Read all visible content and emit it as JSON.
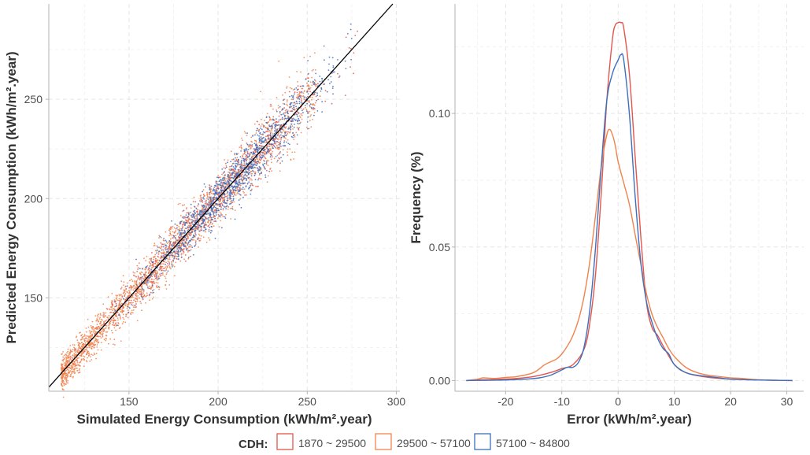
{
  "colors": {
    "group1": "#e2564c",
    "group2": "#f0834d",
    "group3": "#3d6fbd",
    "identity_line": "#000000"
  },
  "legend": {
    "title": "CDH:",
    "items": [
      {
        "label": "1870 ~ 29500",
        "color_key": "group1"
      },
      {
        "label": "29500 ~ 57100",
        "color_key": "group2"
      },
      {
        "label": "57100 ~ 84800",
        "color_key": "group3"
      }
    ]
  },
  "chart_data": [
    {
      "type": "scatter",
      "xlabel": "Simulated Energy Consumption (kWh/m².year)",
      "ylabel": "Predicted Energy Consumption (kWh/m².year)",
      "xlim": [
        105,
        302
      ],
      "ylim": [
        103,
        298
      ],
      "x_ticks": [
        150,
        200,
        250,
        300
      ],
      "y_ticks": [
        150,
        200,
        250
      ],
      "reference_line": "y = x",
      "grid": true,
      "series": [
        {
          "name": "1870 ~ 29500",
          "color_key": "group1",
          "x_range": [
            110,
            280
          ],
          "count": 900
        },
        {
          "name": "29500 ~ 57100",
          "color_key": "group2",
          "x_range": [
            112,
            255
          ],
          "count": 2200
        },
        {
          "name": "57100 ~ 84800",
          "color_key": "group3",
          "x_range": [
            140,
            275
          ],
          "count": 1300
        }
      ]
    },
    {
      "type": "line",
      "xlabel": "Error (kWh/m².year)",
      "ylabel": "Frequency (%)",
      "xlim": [
        -29,
        33
      ],
      "ylim": [
        -0.004,
        0.141
      ],
      "x_ticks": [
        -20,
        -10,
        0,
        10,
        20,
        30
      ],
      "y_ticks": [
        0.0,
        0.05,
        0.1
      ],
      "y_tick_labels": [
        "0.00",
        "0.05",
        "0.10"
      ],
      "grid": true,
      "series": [
        {
          "name": "1870 ~ 29500",
          "color_key": "group1",
          "x": [
            -27,
            -25,
            -22,
            -18,
            -15,
            -12,
            -10,
            -8,
            -6,
            -5,
            -4,
            -3,
            -2,
            -1,
            -0.5,
            0,
            0.5,
            1,
            2,
            3,
            4,
            5,
            6,
            7,
            8,
            10,
            12,
            15,
            20,
            25,
            31
          ],
          "y": [
            0.0,
            0.0002,
            0.0004,
            0.0008,
            0.0015,
            0.003,
            0.0045,
            0.006,
            0.012,
            0.022,
            0.04,
            0.07,
            0.105,
            0.128,
            0.133,
            0.134,
            0.134,
            0.132,
            0.115,
            0.085,
            0.055,
            0.03,
            0.02,
            0.017,
            0.013,
            0.006,
            0.003,
            0.0015,
            0.0005,
            0.0002,
            0.0
          ]
        },
        {
          "name": "29500 ~ 57100",
          "color_key": "group2",
          "x": [
            -27,
            -25,
            -24,
            -22,
            -20,
            -18,
            -15,
            -13,
            -11,
            -10,
            -9,
            -8,
            -7,
            -6,
            -5,
            -4,
            -3,
            -2,
            -1.5,
            -1,
            -0.5,
            0,
            1,
            2,
            3,
            4,
            5,
            6,
            7,
            8,
            9,
            10,
            12,
            14,
            16,
            18,
            20,
            22,
            25,
            31
          ],
          "y": [
            0.0,
            0.0005,
            0.001,
            0.0008,
            0.0012,
            0.0015,
            0.003,
            0.006,
            0.008,
            0.01,
            0.013,
            0.017,
            0.023,
            0.032,
            0.045,
            0.062,
            0.08,
            0.092,
            0.094,
            0.092,
            0.088,
            0.082,
            0.074,
            0.066,
            0.055,
            0.044,
            0.033,
            0.025,
            0.02,
            0.016,
            0.012,
            0.009,
            0.005,
            0.003,
            0.002,
            0.0015,
            0.001,
            0.0008,
            0.0003,
            0.0
          ]
        },
        {
          "name": "57100 ~ 84800",
          "color_key": "group3",
          "x": [
            -27,
            -20,
            -16,
            -14,
            -12,
            -10,
            -9,
            -8,
            -7,
            -6,
            -5,
            -4,
            -3,
            -2,
            -1,
            0,
            0.5,
            1,
            2,
            3,
            4,
            5,
            6,
            7,
            8,
            9,
            10,
            12,
            14,
            16,
            18,
            20,
            25,
            31
          ],
          "y": [
            0.0,
            0.0002,
            0.0006,
            0.001,
            0.002,
            0.004,
            0.005,
            0.005,
            0.007,
            0.013,
            0.027,
            0.05,
            0.08,
            0.105,
            0.115,
            0.12,
            0.122,
            0.12,
            0.1,
            0.07,
            0.045,
            0.03,
            0.022,
            0.016,
            0.012,
            0.01,
            0.006,
            0.003,
            0.002,
            0.0015,
            0.001,
            0.0005,
            0.0002,
            0.0
          ]
        }
      ]
    }
  ]
}
